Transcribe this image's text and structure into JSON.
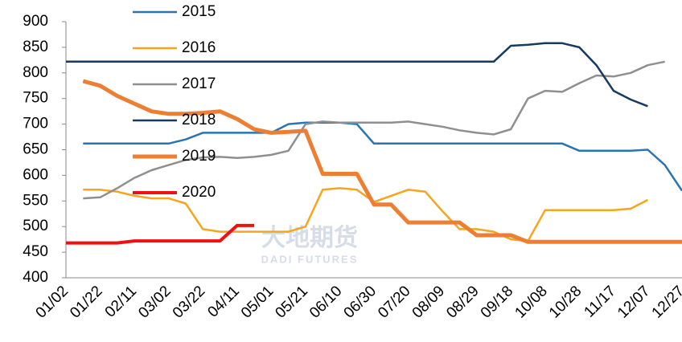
{
  "chart_data": {
    "type": "line",
    "watermark": {
      "cn": "大地期货",
      "en": "DADI FUTURES"
    },
    "categories": [
      "01/02",
      null,
      "01/22",
      null,
      "02/11",
      null,
      "03/02",
      null,
      "03/22",
      null,
      "04/11",
      null,
      "05/01",
      null,
      "05/21",
      null,
      "06/10",
      null,
      "06/30",
      null,
      "07/20",
      null,
      "08/09",
      null,
      "08/29",
      null,
      "09/18",
      null,
      "10/08",
      null,
      "10/28",
      null,
      "11/17",
      null,
      "12/07",
      null,
      "12/27"
    ],
    "ylim": [
      400,
      900
    ],
    "yticks": [
      400,
      450,
      500,
      550,
      600,
      650,
      700,
      750,
      800,
      850,
      900
    ],
    "series": [
      {
        "name": "2015",
        "color": "#2a74b0",
        "width": 2.5,
        "values": [
          null,
          662,
          662,
          662,
          662,
          662,
          662,
          670,
          683,
          683,
          683,
          683,
          683,
          700,
          703,
          703,
          703,
          700,
          662,
          662,
          662,
          662,
          662,
          662,
          662,
          662,
          662,
          662,
          662,
          662,
          648,
          648,
          648,
          648,
          650,
          620,
          570
        ]
      },
      {
        "name": "2016",
        "color": "#f7a51e",
        "width": 2.5,
        "values": [
          null,
          572,
          572,
          568,
          560,
          555,
          555,
          545,
          495,
          490,
          490,
          490,
          490,
          490,
          500,
          572,
          575,
          572,
          548,
          560,
          572,
          568,
          530,
          495,
          495,
          490,
          475,
          472,
          532,
          532,
          532,
          532,
          532,
          535,
          552,
          null,
          null
        ]
      },
      {
        "name": "2017",
        "color": "#8f8f8f",
        "width": 2.5,
        "values": [
          null,
          555,
          557,
          575,
          595,
          610,
          620,
          630,
          635,
          636,
          634,
          636,
          640,
          648,
          700,
          705,
          703,
          703,
          703,
          703,
          705,
          700,
          695,
          688,
          683,
          680,
          690,
          750,
          765,
          763,
          780,
          795,
          793,
          800,
          815,
          822,
          null
        ]
      },
      {
        "name": "2018",
        "color": "#163a60",
        "width": 2.5,
        "values": [
          822,
          822,
          822,
          822,
          822,
          822,
          822,
          822,
          822,
          822,
          822,
          822,
          822,
          822,
          822,
          822,
          822,
          822,
          822,
          822,
          822,
          822,
          822,
          822,
          822,
          822,
          853,
          855,
          858,
          858,
          850,
          815,
          765,
          748,
          735,
          null,
          null
        ]
      },
      {
        "name": "2019",
        "color": "#ec7f33",
        "width": 5,
        "values": [
          null,
          784,
          775,
          755,
          740,
          725,
          720,
          720,
          722,
          725,
          710,
          690,
          683,
          685,
          687,
          603,
          603,
          603,
          543,
          543,
          508,
          508,
          508,
          508,
          483,
          483,
          483,
          470,
          470,
          470,
          470,
          470,
          470,
          470,
          470,
          470,
          470
        ]
      },
      {
        "name": "2020",
        "color": "#ee1111",
        "width": 4,
        "values": [
          468,
          468,
          468,
          468,
          472,
          472,
          472,
          472,
          472,
          472,
          502,
          502,
          null,
          null,
          null,
          null,
          null,
          null,
          null,
          null,
          null,
          null,
          null,
          null,
          null,
          null,
          null,
          null,
          null,
          null,
          null,
          null,
          null,
          null,
          null,
          null,
          null
        ]
      }
    ]
  }
}
